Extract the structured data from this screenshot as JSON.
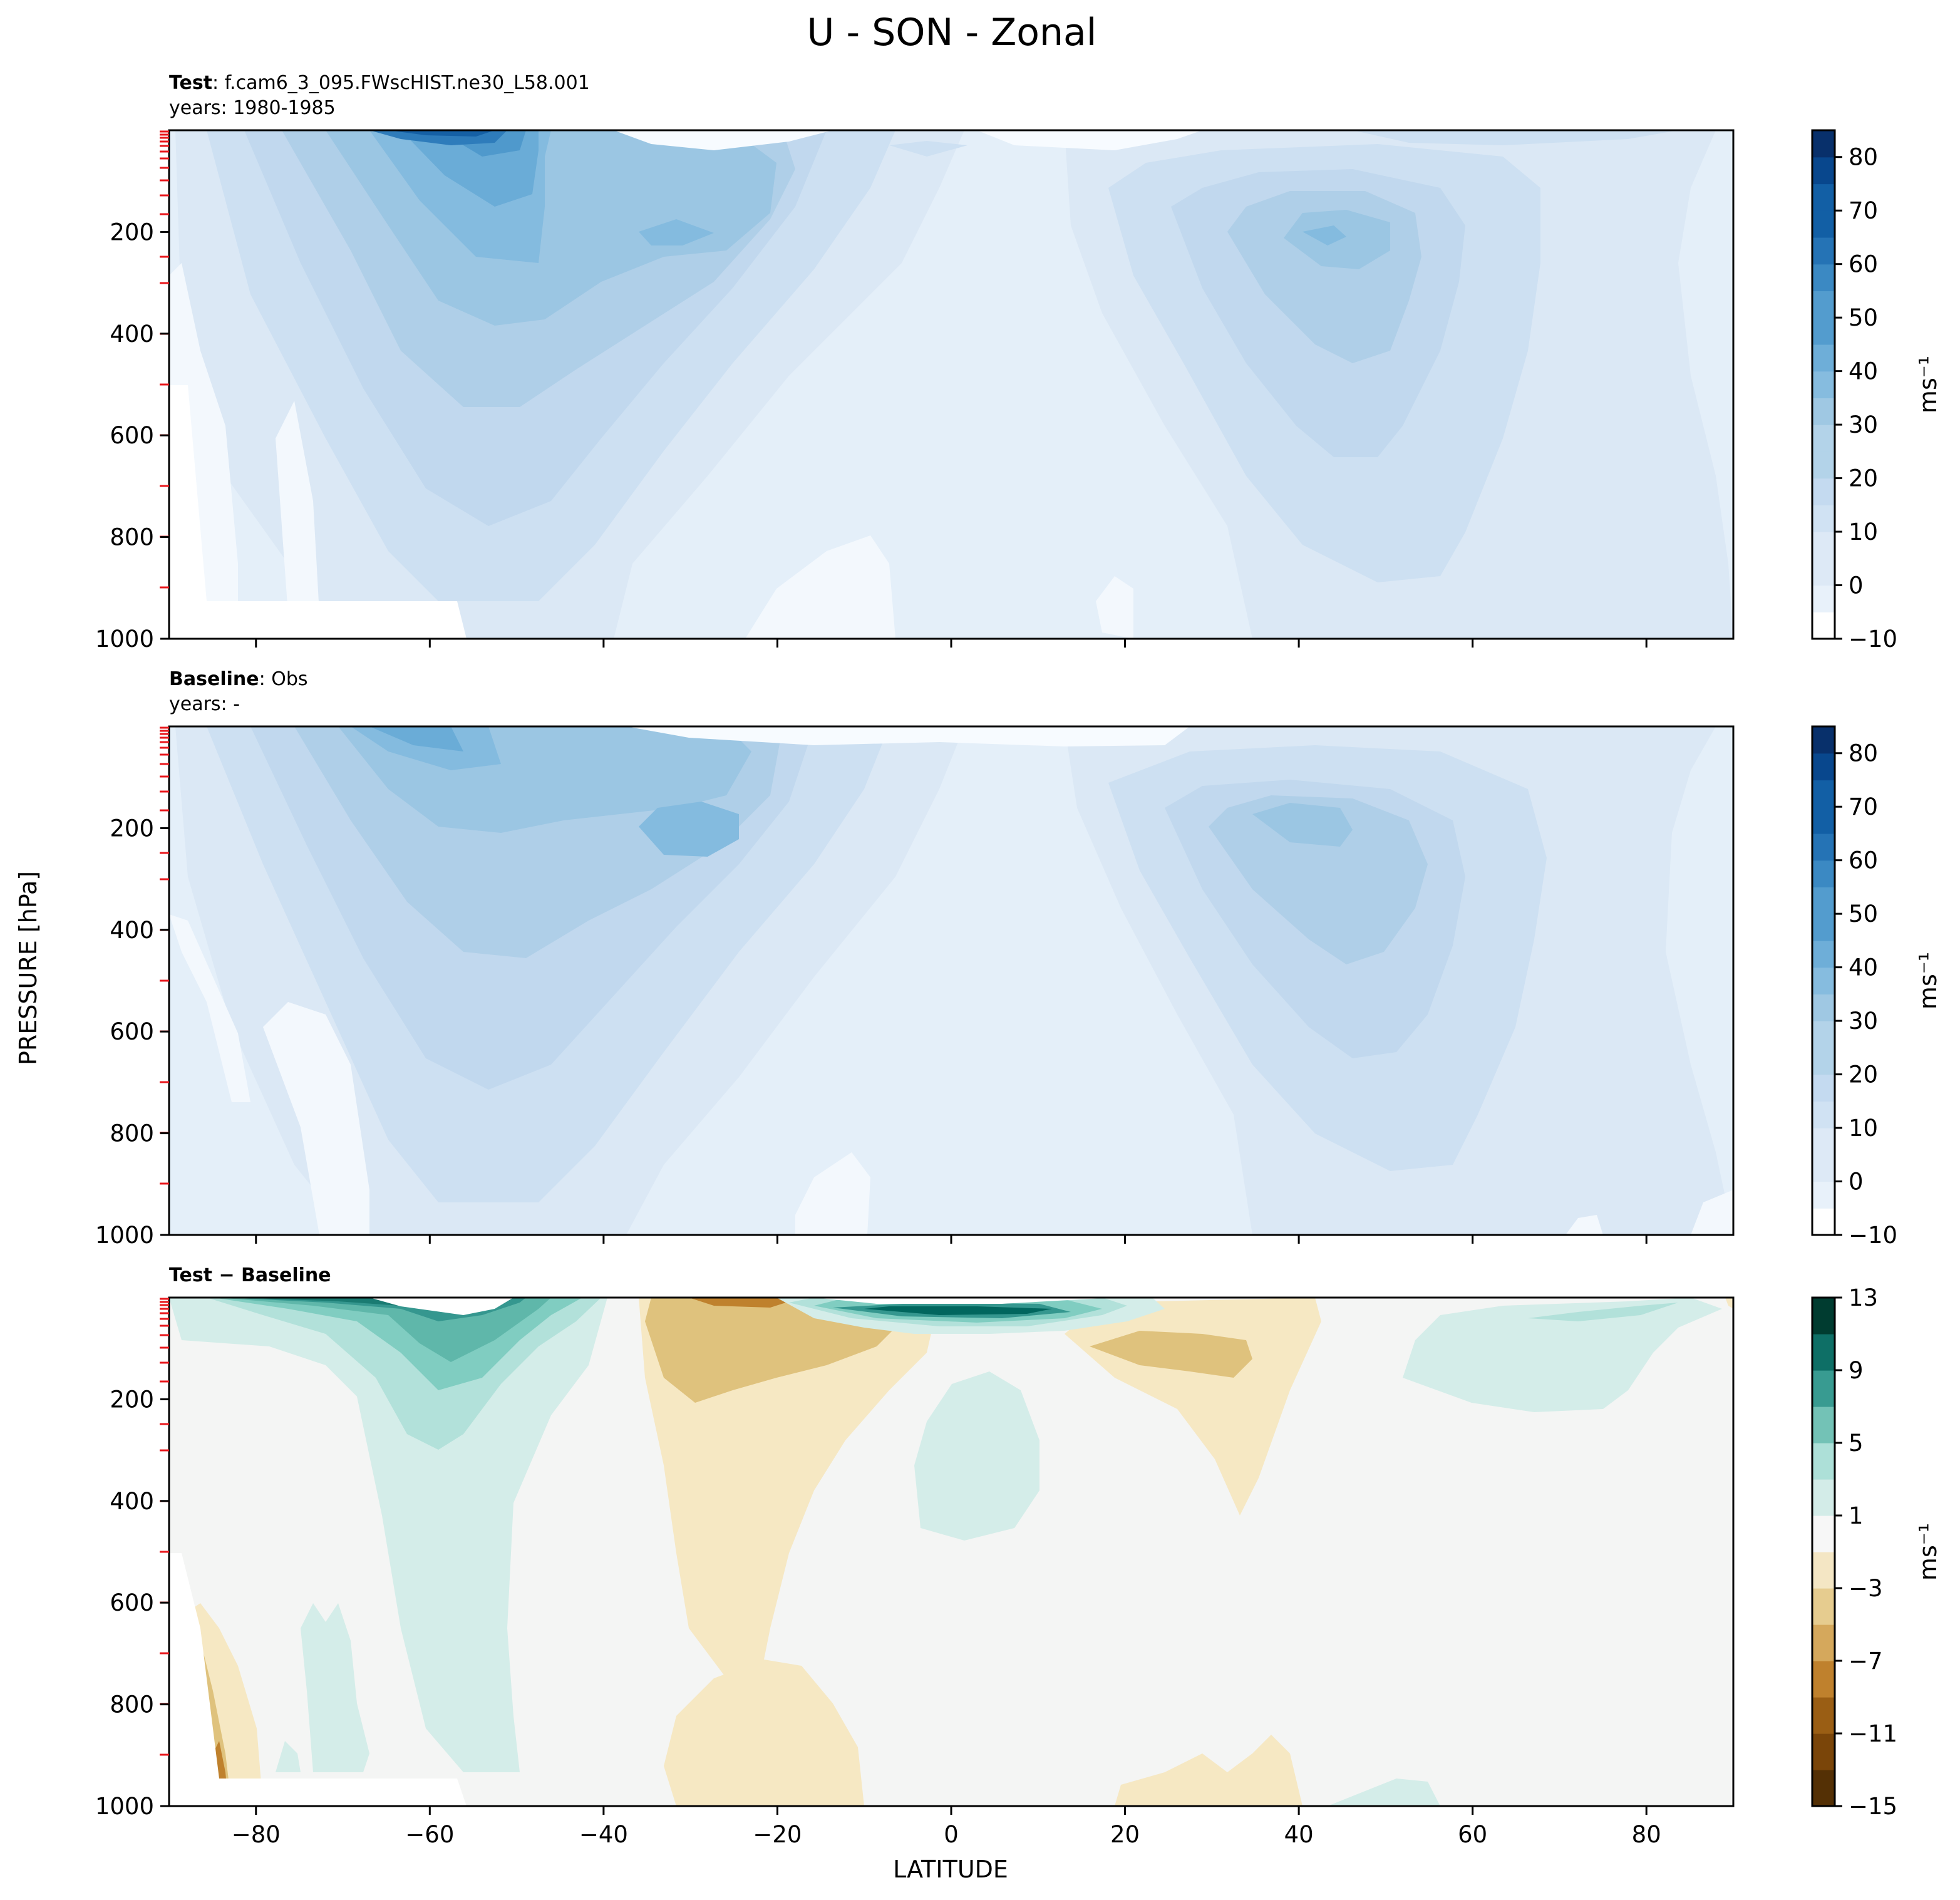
{
  "figure": {
    "title": "U - SON - Zonal",
    "xlabel": "LATITUDE",
    "ylabel": "PRESSURE [hPa]"
  },
  "panels": [
    {
      "id": "test",
      "label_bold": "Test",
      "label_rest": ": f.cam6_3_095.FWscHIST.ne30_L58.001",
      "years": "years: 1980-1985"
    },
    {
      "id": "baseline",
      "label_bold": "Baseline",
      "label_rest": ": Obs",
      "years": "years: -"
    },
    {
      "id": "diff",
      "label_bold": "Test − Baseline",
      "label_rest": "",
      "years": ""
    }
  ],
  "colors": {
    "blues": [
      "#f7fbff",
      "#e8f1fa",
      "#dde9f6",
      "#d0e2f3",
      "#c4daf0",
      "#b3d3e9",
      "#9fc8e3",
      "#86bcdf",
      "#6eaed8",
      "#539cce",
      "#3b89c3",
      "#2573b5",
      "#125fa5",
      "#08478d",
      "#08306b"
    ],
    "brbg": [
      "#543005",
      "#8c510a",
      "#bf812d",
      "#dfc27d",
      "#f6e8c3",
      "#f5f5f5",
      "#c7eae5",
      "#80cdc1",
      "#35978f",
      "#01665e",
      "#003c30"
    ],
    "diff_bg": "#f4f5f4",
    "low_fill": "#ffffff"
  },
  "chart_data": [
    {
      "type": "contourf",
      "name": "Test",
      "xlim": [
        -90,
        90
      ],
      "ylim": [
        1000,
        0
      ],
      "x_ticks": [
        -80,
        -60,
        -40,
        -20,
        0,
        20,
        40,
        60,
        80
      ],
      "x_tick_labels": [],
      "y_ticks": [
        200,
        400,
        600,
        800,
        1000
      ],
      "y_tick_labels": [
        "200",
        "400",
        "600",
        "800",
        "1000"
      ],
      "colorbar": {
        "ticks": [
          80,
          70,
          60,
          50,
          40,
          30,
          20,
          10,
          0,
          -10
        ],
        "tick_labels": [
          "80",
          "70",
          "60",
          "50",
          "40",
          "30",
          "20",
          "10",
          "0",
          "−10"
        ],
        "label": "ms⁻¹",
        "min": -10,
        "max": 85,
        "levels": 19
      },
      "features": {
        "sh_jet": {
          "lat": -60,
          "p": 20,
          "max": 80
        },
        "sh_subtropical": {
          "lat": -30,
          "p": 200,
          "max": 40
        },
        "nh_jet": {
          "lat": 42,
          "p": 200,
          "max": 35
        },
        "tropical_easterlies": {
          "lat": 0,
          "p": 900,
          "min": -5
        },
        "topography_cutoff": {
          "lat_range": [
            -90,
            -56
          ],
          "p_above": 920
        }
      }
    },
    {
      "type": "contourf",
      "name": "Baseline",
      "xlim": [
        -90,
        90
      ],
      "ylim": [
        1000,
        0
      ],
      "x_ticks": [
        -80,
        -60,
        -40,
        -20,
        0,
        20,
        40,
        60,
        80
      ],
      "x_tick_labels": [],
      "y_ticks": [
        200,
        400,
        600,
        800,
        1000
      ],
      "y_tick_labels": [
        "200",
        "400",
        "600",
        "800",
        "1000"
      ],
      "colorbar": {
        "ticks": [
          80,
          70,
          60,
          50,
          40,
          30,
          20,
          10,
          0,
          -10
        ],
        "tick_labels": [
          "80",
          "70",
          "60",
          "50",
          "40",
          "30",
          "20",
          "10",
          "0",
          "−10"
        ],
        "label": "ms⁻¹",
        "min": -10,
        "max": 85,
        "levels": 19
      },
      "features": {
        "sh_jet": {
          "lat": -60,
          "p": 20,
          "max": 45
        },
        "sh_subtropical": {
          "lat": -30,
          "p": 200,
          "max": 42
        },
        "nh_jet": {
          "lat": 42,
          "p": 200,
          "max": 37
        },
        "tropical_easterlies": {
          "lat": -5,
          "p": 940,
          "min": -5
        }
      }
    },
    {
      "type": "contourf",
      "name": "Test − Baseline",
      "xlim": [
        -90,
        90
      ],
      "ylim": [
        1000,
        0
      ],
      "x_ticks": [
        -80,
        -60,
        -40,
        -20,
        0,
        20,
        40,
        60,
        80
      ],
      "x_tick_labels": [
        "−80",
        "−60",
        "−40",
        "−20",
        "0",
        "20",
        "40",
        "60",
        "80"
      ],
      "y_ticks": [
        200,
        400,
        600,
        800,
        1000
      ],
      "y_tick_labels": [
        "200",
        "400",
        "600",
        "800",
        "1000"
      ],
      "colorbar": {
        "ticks": [
          13,
          9,
          5,
          1,
          -3,
          -7,
          -11,
          -15
        ],
        "tick_labels": [
          "13",
          "9",
          "5",
          "1",
          "−3",
          "−7",
          "−11",
          "−15"
        ],
        "label": "ms⁻¹",
        "min": -15,
        "max": 13,
        "levels": 14
      },
      "features": {
        "sh_upper_positive": {
          "lat": -62,
          "p": 20,
          "max": 13
        },
        "sh_column_positive": {
          "lat": -58,
          "p": 500,
          "value": 2
        },
        "tropical_upper_positive": {
          "lat": 5,
          "p": 30,
          "max": 13
        },
        "tropical_column_positive": {
          "lat": 2,
          "p": 300,
          "value": 2
        },
        "subtropical_negative": {
          "lat": -25,
          "p": 100,
          "min": -5
        },
        "nh_subtropical_negative": {
          "lat": 25,
          "p": 100,
          "min": -4
        },
        "nh_upper_positive": {
          "lat": 65,
          "p": 80,
          "value": 2
        }
      }
    }
  ]
}
